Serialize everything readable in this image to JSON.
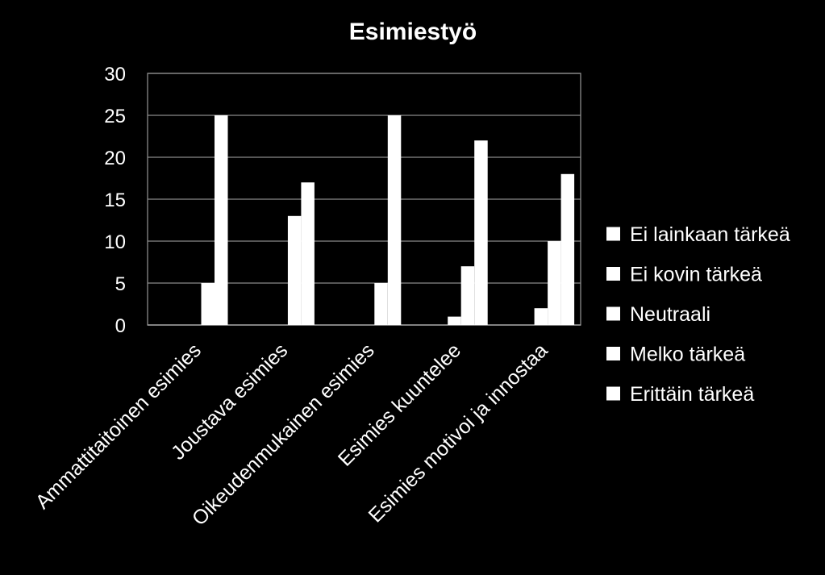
{
  "chart_data": {
    "type": "bar",
    "title": "Esimiestyö",
    "categories": [
      "Ammattitaitoinen esimies",
      "Joustava esimies",
      "Oikeudenmukainen esimies",
      "Esimies kuuntelee",
      "Esimies motivoi ja innostaa"
    ],
    "series": [
      {
        "name": "Ei lainkaan tärkeä",
        "values": [
          0,
          0,
          0,
          0,
          0
        ]
      },
      {
        "name": "Ei kovin tärkeä",
        "values": [
          0,
          0,
          0,
          0,
          0
        ]
      },
      {
        "name": "Neutraali",
        "values": [
          0,
          0,
          0,
          1,
          2
        ]
      },
      {
        "name": "Melko tärkeä",
        "values": [
          5,
          13,
          5,
          7,
          10
        ]
      },
      {
        "name": "Erittäin tärkeä",
        "values": [
          25,
          17,
          25,
          22,
          18
        ]
      }
    ],
    "ylim": [
      0,
      30
    ],
    "yticks": [
      0,
      5,
      10,
      15,
      20,
      25,
      30
    ],
    "grid": true,
    "legend_position": "right",
    "bar_color": "#ffffff",
    "background_color": "#000000"
  }
}
